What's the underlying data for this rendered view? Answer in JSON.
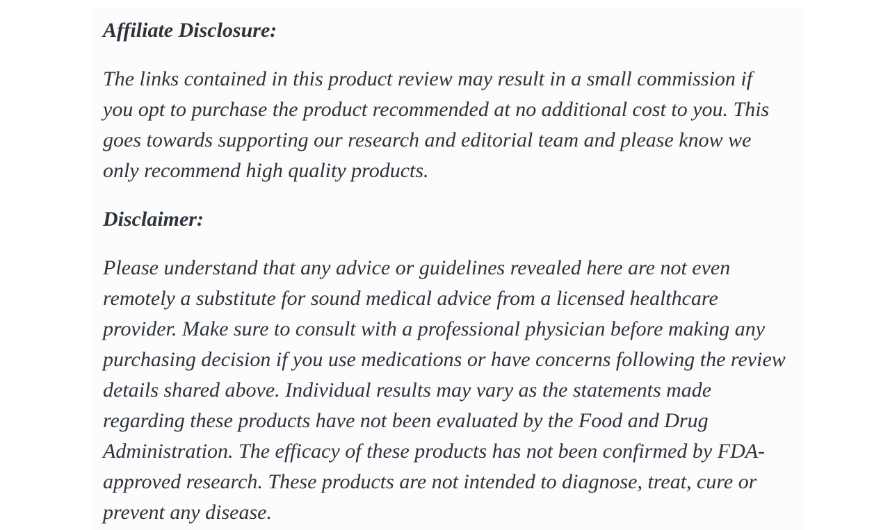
{
  "page": {
    "background": "#ffffff",
    "panel_background": "#fcfcfd",
    "text_color": "#2c333a"
  },
  "article": {
    "sections": [
      {
        "heading": "Affiliate Disclosure:",
        "body": "The links contained in this product review may result in a small commission if\nyou opt to purchase the product recommended at no additional cost to you. This\ngoes towards supporting our research and editorial team and please know we\nonly recommend high quality products."
      },
      {
        "heading": "Disclaimer:",
        "body": "Please understand that any advice or guidelines revealed here are not even\nremotely a substitute for sound medical advice from a licensed healthcare\nprovider. Make sure to consult with a professional physician before making any\npurchasing decision if you use medications or have concerns following the review\ndetails shared above. Individual results may vary as the statements made\nregarding these products have not been evaluated by the Food and Drug\nAdministration. The efficacy of these products has not been confirmed by FDA-\napproved research. These products are not intended to diagnose, treat, cure or\nprevent any disease."
      }
    ]
  }
}
